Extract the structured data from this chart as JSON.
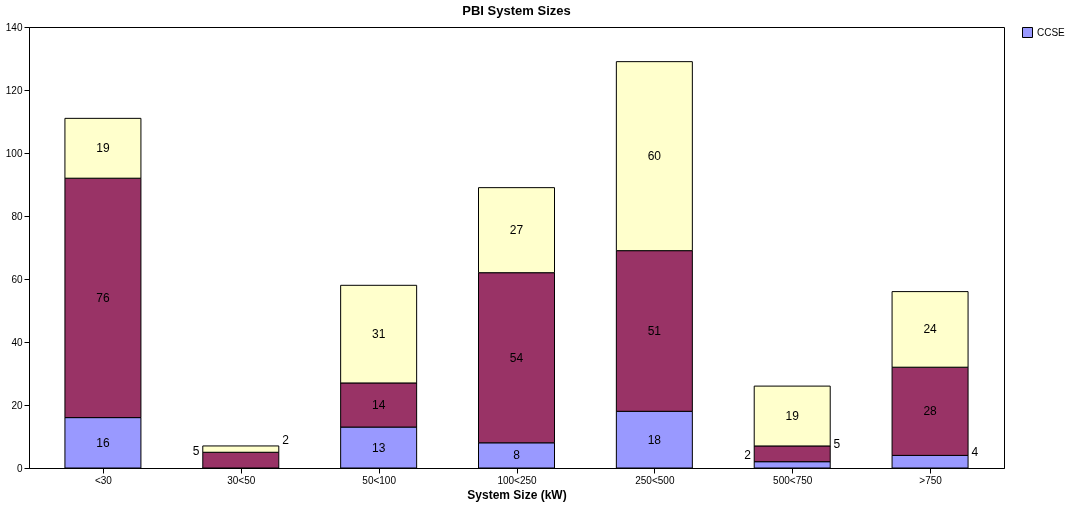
{
  "chart_data": {
    "type": "bar",
    "title": "PBI System Sizes",
    "xlabel": "System Size (kW)",
    "stacked": true,
    "categories": [
      "<30",
      "30<50",
      "50<100",
      "100<250",
      "250<500",
      "500<750",
      ">750"
    ],
    "series": [
      {
        "name": "CCSE",
        "color": "#9999ff",
        "values": [
          16,
          0,
          13,
          8,
          18,
          2,
          4
        ],
        "value_labels": [
          "16",
          null,
          "13",
          "8",
          "18",
          "2",
          "4"
        ]
      },
      {
        "color": "#993366",
        "values": [
          76,
          5,
          14,
          54,
          51,
          5,
          28
        ],
        "value_labels": [
          "76",
          "5",
          "14",
          "54",
          "51",
          "5",
          "28"
        ]
      },
      {
        "color": "#ffffcc",
        "values": [
          19,
          2,
          31,
          27,
          60,
          19,
          24
        ],
        "value_labels": [
          "19",
          "2",
          "31",
          "27",
          "60",
          "19",
          "24"
        ]
      }
    ],
    "ylim": [
      0,
      140
    ],
    "yticks": [
      0,
      20,
      40,
      60,
      80,
      100,
      120,
      140
    ],
    "grid": false,
    "legend": "right"
  }
}
